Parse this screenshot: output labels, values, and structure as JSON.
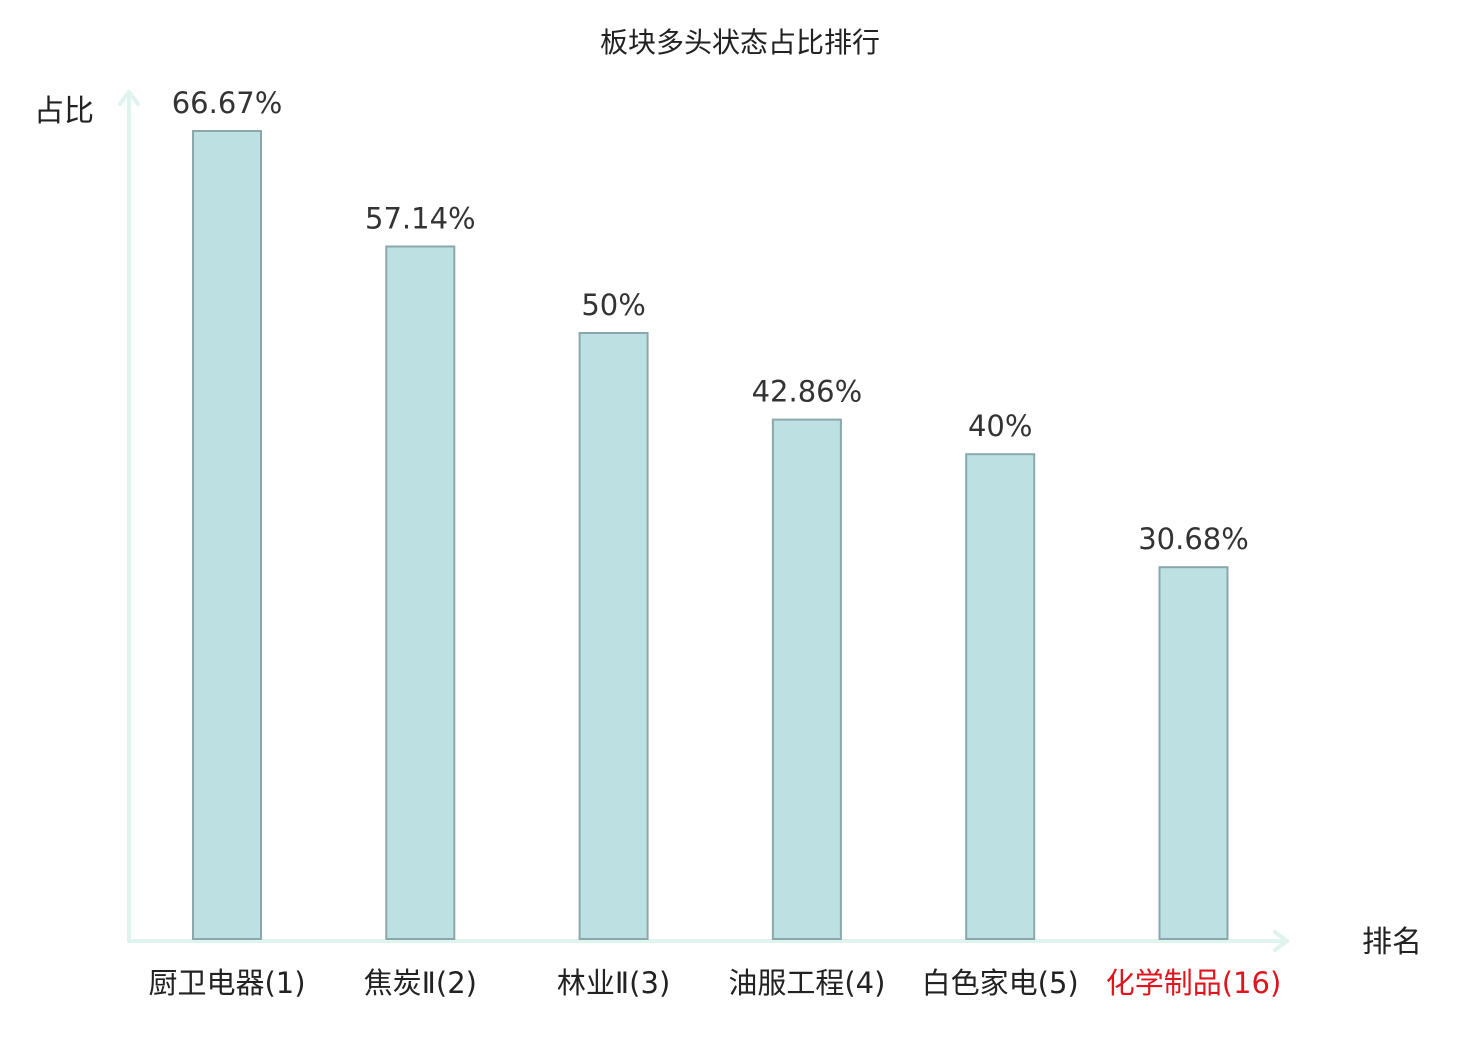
{
  "chart_data": {
    "type": "bar",
    "title": "板块多头状态占比排行",
    "ylabel": "占比",
    "xlabel": "排名",
    "ylim": [
      0,
      70
    ],
    "grid": false,
    "categories": [
      "厨卫电器(1)",
      "焦炭Ⅱ(2)",
      "林业Ⅱ(3)",
      "油服工程(4)",
      "白色家电(5)",
      "化学制品(16)"
    ],
    "values": [
      66.67,
      57.14,
      50,
      42.86,
      40,
      30.68
    ],
    "value_labels": [
      "66.67%",
      "57.14%",
      "50%",
      "42.86%",
      "40%",
      "30.68%"
    ],
    "highlight_index": 5,
    "colors": {
      "bar_fill": "#bde0e3",
      "bar_stroke": "#8aa8ac",
      "axis": "#dff3ef",
      "text": "#222222",
      "value_text": "#333333",
      "highlight_text": "#e0141e"
    }
  }
}
